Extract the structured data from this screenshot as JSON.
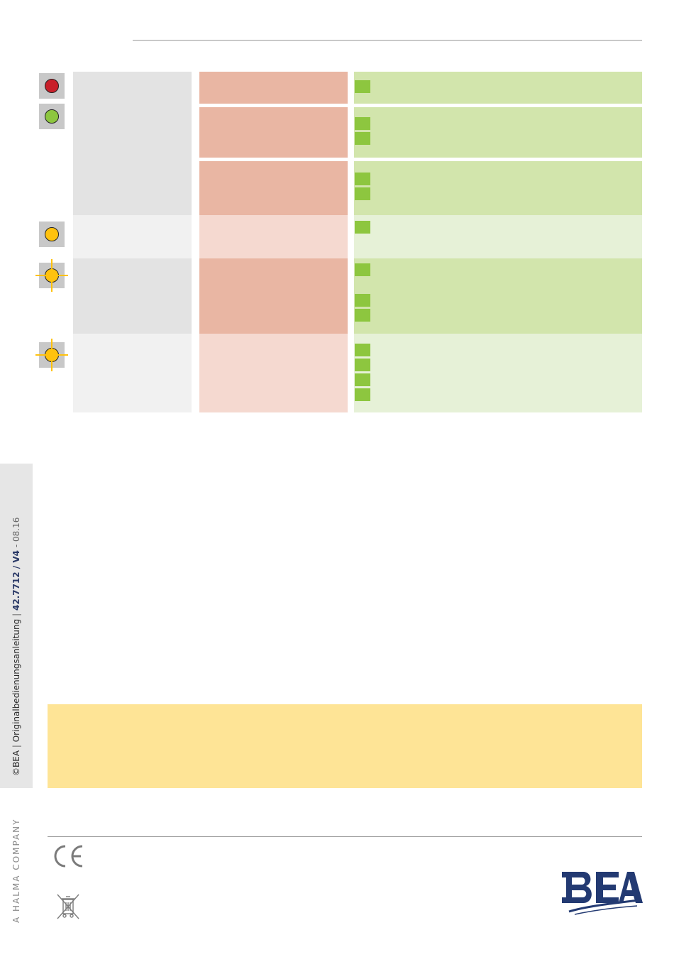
{
  "sidebar": {
    "copyright": "©BEA",
    "doc_title": "Originalbedienungsanleitung",
    "doc_number": "42.7712 / V4",
    "date": "08.16",
    "separator": "|",
    "dash": " - "
  },
  "footer": {
    "company": "A HALMA COMPANY",
    "ce_mark": "CE",
    "logo_text": "BEA"
  },
  "led_colors": {
    "red": "#c8202a",
    "green": "#8dc63f",
    "orange": "#ffc20e"
  },
  "table": {
    "rows": [
      {
        "led": "red"
      },
      {
        "led": "green"
      },
      {
        "led": "orange"
      },
      {
        "led": "orange-flashing"
      },
      {
        "led": "orange-flashing"
      }
    ]
  }
}
